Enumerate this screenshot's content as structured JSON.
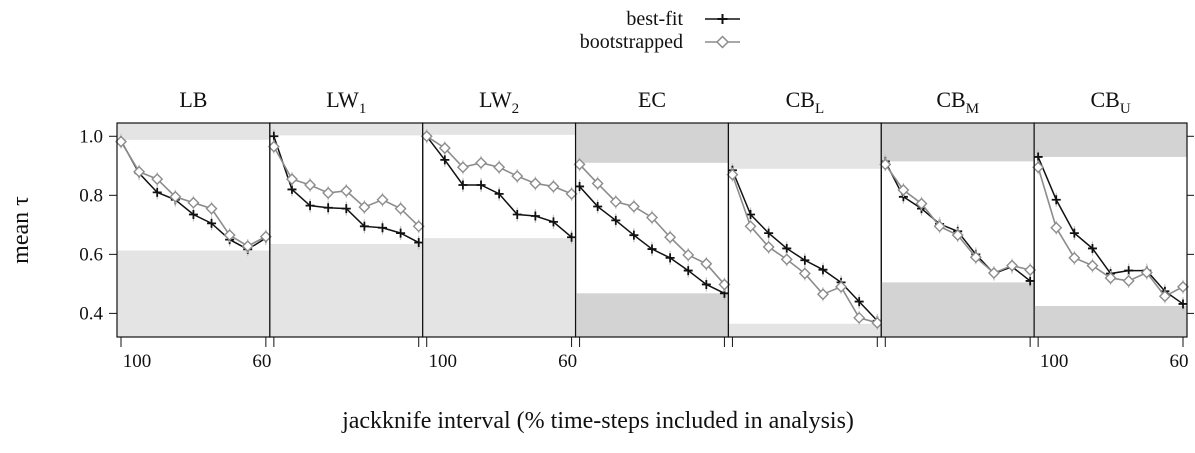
{
  "legend": {
    "placement": "top-center",
    "items": [
      {
        "label": "best-fit",
        "marker": "plus"
      },
      {
        "label": "bootstrapped",
        "marker": "diamond"
      }
    ]
  },
  "colors": {
    "best_fit": "#111111",
    "bootstrapped": "#8c8c8c",
    "error_bar": "#c4c4c4",
    "band_light": "#e4e4e4",
    "band_dark": "#d3d3d3"
  },
  "chart_data": {
    "type": "line",
    "xlabel": "jackknife interval (% time-steps included in analysis)",
    "ylabel": "mean τ",
    "ylim": [
      0.32,
      1.045
    ],
    "y_ticks": [
      0.4,
      0.6,
      0.8,
      1.0
    ],
    "y_tick_labels": [
      "0.4",
      "0.6",
      "0.8",
      "1.0"
    ],
    "x_ticks": [
      100,
      60
    ],
    "x_tick_labels": [
      "100",
      "60"
    ],
    "x_range": [
      100,
      60
    ],
    "panels": [
      {
        "title": "LB",
        "sub": "",
        "band_shade": "light",
        "upper_band": [
          0.988,
          1.045
        ],
        "lower_band": [
          0.32,
          0.613
        ],
        "x_tick_label_panels": true,
        "series": [
          {
            "name": "best-fit",
            "x": [
              100,
              95,
              90,
              85,
              80,
              75,
              70,
              65,
              60
            ],
            "values": [
              0.985,
              0.875,
              0.81,
              0.785,
              0.735,
              0.705,
              0.65,
              0.617,
              0.655
            ]
          },
          {
            "name": "bootstrapped",
            "x": [
              100,
              95,
              90,
              85,
              80,
              75,
              70,
              65,
              60
            ],
            "values": [
              0.982,
              0.88,
              0.855,
              0.795,
              0.775,
              0.755,
              0.665,
              0.628,
              0.66
            ]
          }
        ]
      },
      {
        "title": "LW",
        "sub": "1",
        "band_shade": "light",
        "upper_band": [
          1.003,
          1.045
        ],
        "lower_band": [
          0.32,
          0.635
        ],
        "series": [
          {
            "name": "best-fit",
            "x": [
              100,
              95,
              90,
              85,
              80,
              75,
              70,
              65,
              60
            ],
            "values": [
              1.0,
              0.82,
              0.765,
              0.758,
              0.755,
              0.695,
              0.69,
              0.672,
              0.64
            ]
          },
          {
            "name": "bootstrapped",
            "x": [
              100,
              95,
              90,
              85,
              80,
              75,
              70,
              65,
              60
            ],
            "values": [
              0.965,
              0.855,
              0.835,
              0.808,
              0.815,
              0.76,
              0.785,
              0.755,
              0.695
            ]
          }
        ]
      },
      {
        "title": "LW",
        "sub": "2",
        "band_shade": "light",
        "upper_band": [
          1.005,
          1.045
        ],
        "lower_band": [
          0.32,
          0.655
        ],
        "series": [
          {
            "name": "best-fit",
            "x": [
              100,
              95,
              90,
              85,
              80,
              75,
              70,
              65,
              60
            ],
            "values": [
              1.0,
              0.92,
              0.835,
              0.835,
              0.805,
              0.735,
              0.73,
              0.71,
              0.658
            ]
          },
          {
            "name": "bootstrapped",
            "x": [
              100,
              95,
              90,
              85,
              80,
              75,
              70,
              65,
              60
            ],
            "values": [
              1.0,
              0.96,
              0.895,
              0.91,
              0.895,
              0.865,
              0.84,
              0.83,
              0.805
            ]
          }
        ]
      },
      {
        "title": "EC",
        "sub": "",
        "band_shade": "dark",
        "upper_band": [
          0.91,
          1.045
        ],
        "lower_band": [
          0.32,
          0.468
        ],
        "series": [
          {
            "name": "best-fit",
            "x": [
              100,
              95,
              90,
              85,
              80,
              75,
              70,
              65,
              60
            ],
            "values": [
              0.83,
              0.762,
              0.715,
              0.665,
              0.618,
              0.588,
              0.545,
              0.498,
              0.468
            ]
          },
          {
            "name": "bootstrapped",
            "x": [
              100,
              95,
              90,
              85,
              80,
              75,
              70,
              65,
              60
            ],
            "values": [
              0.905,
              0.84,
              0.778,
              0.762,
              0.725,
              0.658,
              0.598,
              0.568,
              0.498
            ]
          }
        ]
      },
      {
        "title": "CB",
        "sub": "L",
        "band_shade": "light",
        "upper_band": [
          0.89,
          1.045
        ],
        "lower_band": [
          0.32,
          0.365
        ],
        "series": [
          {
            "name": "best-fit",
            "x": [
              100,
              95,
              90,
              85,
              80,
              75,
              70,
              65,
              60
            ],
            "values": [
              0.885,
              0.735,
              0.672,
              0.62,
              0.58,
              0.548,
              0.505,
              0.44,
              0.375
            ]
          },
          {
            "name": "bootstrapped",
            "x": [
              100,
              95,
              90,
              85,
              80,
              75,
              70,
              65,
              60
            ],
            "values": [
              0.87,
              0.695,
              0.625,
              0.583,
              0.535,
              0.465,
              0.49,
              0.385,
              0.368
            ]
          }
        ]
      },
      {
        "title": "CB",
        "sub": "M",
        "band_shade": "dark",
        "upper_band": [
          0.915,
          1.045
        ],
        "lower_band": [
          0.32,
          0.505
        ],
        "series": [
          {
            "name": "best-fit",
            "x": [
              100,
              95,
              90,
              85,
              80,
              75,
              70,
              65,
              60
            ],
            "values": [
              0.915,
              0.795,
              0.755,
              0.703,
              0.678,
              0.6,
              0.535,
              0.558,
              0.51
            ]
          },
          {
            "name": "bootstrapped",
            "x": [
              100,
              95,
              90,
              85,
              80,
              75,
              70,
              65,
              60
            ],
            "values": [
              0.905,
              0.818,
              0.772,
              0.695,
              0.665,
              0.59,
              0.537,
              0.562,
              0.547
            ]
          }
        ]
      },
      {
        "title": "CB",
        "sub": "U",
        "band_shade": "dark",
        "upper_band": [
          0.93,
          1.045
        ],
        "lower_band": [
          0.32,
          0.425
        ],
        "x_tick_label_panels": true,
        "series": [
          {
            "name": "best-fit",
            "x": [
              100,
              95,
              90,
              85,
              80,
              75,
              70,
              65,
              60
            ],
            "values": [
              0.93,
              0.785,
              0.672,
              0.62,
              0.535,
              0.545,
              0.545,
              0.475,
              0.432
            ]
          },
          {
            "name": "bootstrapped",
            "x": [
              100,
              95,
              90,
              85,
              80,
              75,
              70,
              65,
              60
            ],
            "values": [
              0.895,
              0.69,
              0.588,
              0.562,
              0.52,
              0.51,
              0.538,
              0.458,
              0.49
            ]
          }
        ]
      }
    ]
  }
}
